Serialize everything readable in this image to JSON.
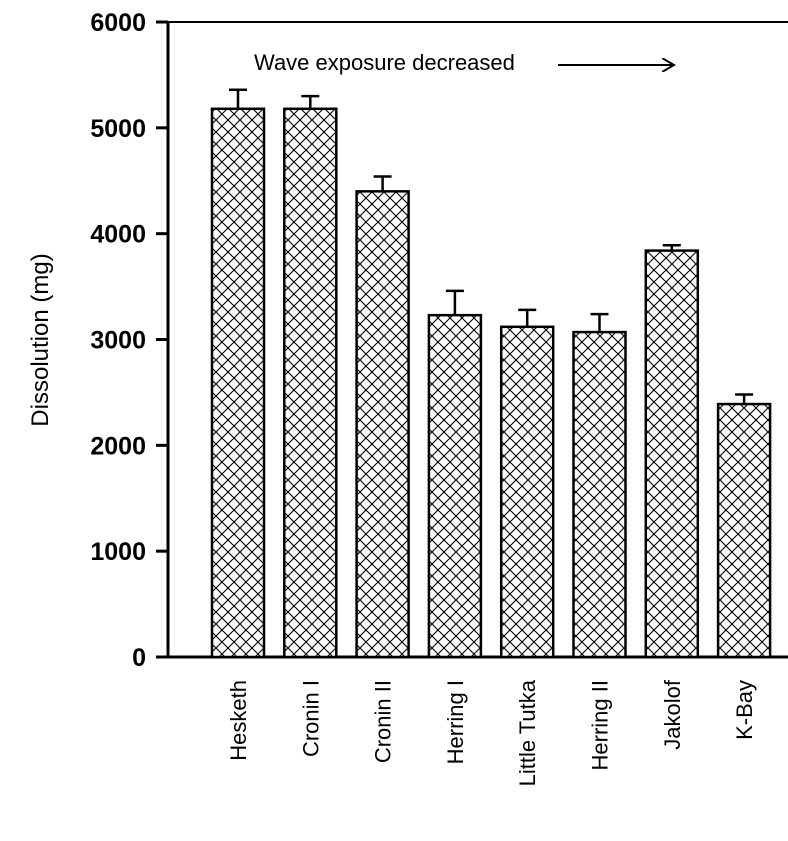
{
  "chart_data": {
    "type": "bar",
    "categories": [
      "Hesketh",
      "Cronin I",
      "Cronin II",
      "Herring I",
      "Little Tutka",
      "Herring II",
      "Jakolof",
      "K-Bay"
    ],
    "values": [
      5180,
      5180,
      4400,
      3230,
      3120,
      3070,
      3840,
      2390
    ],
    "errors": [
      180,
      120,
      140,
      230,
      160,
      170,
      50,
      90
    ],
    "title": "",
    "xlabel": "",
    "ylabel": "Dissolution  (mg)",
    "ylim": [
      0,
      6000
    ],
    "yticks": [
      0,
      1000,
      2000,
      3000,
      4000,
      5000,
      6000
    ],
    "annotation": "Wave exposure decreased",
    "bar_fill": "crosshatch",
    "grid": false,
    "legend": "none"
  },
  "colors": {
    "bar_fill": "#ffffff",
    "hatch": "#000000",
    "axis": "#000000"
  }
}
